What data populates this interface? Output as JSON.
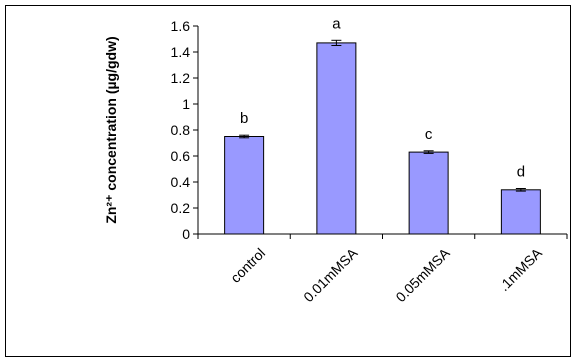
{
  "chart_data": {
    "type": "bar",
    "categories": [
      "control",
      "0.01mMSA",
      "0.05mMSA",
      ".1mMSA"
    ],
    "values": [
      0.75,
      1.47,
      0.63,
      0.34
    ],
    "errors": [
      0.01,
      0.02,
      0.01,
      0.01
    ],
    "significance_letters": [
      "b",
      "a",
      "c",
      "d"
    ],
    "title": "",
    "xlabel": "",
    "ylabel": "Zn²⁺ concentration (µg/gdw)",
    "ylim": [
      0,
      1.6
    ],
    "yticks": [
      "0",
      "0.2",
      "0.4",
      "0.6",
      "0.8",
      "1",
      "1.2",
      "1.4",
      "1.6"
    ],
    "grid": false,
    "legend": "none",
    "colors": {
      "bar_fill": "#9999ff",
      "bar_stroke": "#000000",
      "axis": "#000000"
    }
  }
}
